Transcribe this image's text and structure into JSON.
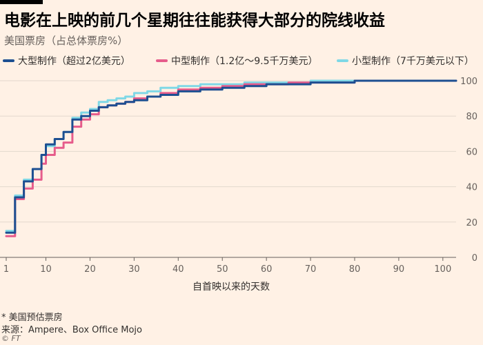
{
  "title": "电影在上映的前几个星期往往能获得大部分的院线收益",
  "subtitle": "美国票房（占总体票房%）",
  "footnote": "* 美国预估票房",
  "source": "来源：Ampere、Box Office Mojo",
  "credit": "© FT",
  "chart_data": {
    "type": "line",
    "xlabel": "自首映以来的天数",
    "ylabel": "",
    "xlim": [
      0,
      103
    ],
    "ylim": [
      0,
      100
    ],
    "xticks": [
      1,
      10,
      20,
      30,
      40,
      50,
      60,
      70,
      80,
      90,
      100
    ],
    "yticks": [
      0,
      20,
      40,
      60,
      80,
      100
    ],
    "grid": true,
    "y_axis_position": "right",
    "legend_position": "top",
    "series": [
      {
        "name": "小型制作（7千万美元以下）",
        "color": "#7fd8e6",
        "x": [
          1,
          3,
          5,
          7,
          9,
          10,
          12,
          14,
          16,
          18,
          20,
          22,
          24,
          26,
          28,
          30,
          33,
          36,
          40,
          45,
          50,
          55,
          60,
          65,
          70,
          75,
          80,
          85,
          90,
          95,
          100,
          103
        ],
        "y": [
          15,
          35,
          44,
          50,
          58,
          63,
          67,
          71,
          79,
          82,
          84,
          88,
          89,
          90,
          91,
          93,
          94,
          96,
          97,
          98,
          98,
          99,
          99,
          99,
          100,
          100,
          100,
          100,
          100,
          100,
          100,
          100
        ]
      },
      {
        "name": "中型制作（1.2亿～9.5千万美元）",
        "color": "#e65c8b",
        "x": [
          1,
          3,
          5,
          7,
          9,
          10,
          12,
          14,
          16,
          18,
          20,
          22,
          24,
          26,
          28,
          30,
          33,
          36,
          40,
          45,
          50,
          55,
          60,
          65,
          70,
          75,
          80,
          85,
          90,
          95,
          100,
          103
        ],
        "y": [
          12,
          33,
          39,
          44,
          53,
          58,
          62,
          65,
          74,
          78,
          81,
          85,
          86,
          87,
          88,
          90,
          91,
          93,
          95,
          96,
          97,
          98,
          98,
          99,
          99,
          99,
          100,
          100,
          100,
          100,
          100,
          100
        ]
      },
      {
        "name": "大型制作（超过2亿美元）",
        "color": "#1d4f91",
        "x": [
          1,
          3,
          5,
          7,
          9,
          10,
          12,
          14,
          16,
          18,
          20,
          22,
          24,
          26,
          28,
          30,
          33,
          36,
          40,
          45,
          50,
          55,
          60,
          65,
          70,
          75,
          80,
          85,
          90,
          95,
          100,
          103
        ],
        "y": [
          14,
          34,
          43,
          50,
          58,
          64,
          67,
          71,
          78,
          80,
          83,
          85,
          86,
          87,
          88,
          89,
          91,
          92,
          94,
          95,
          96,
          97,
          98,
          98,
          99,
          99,
          100,
          100,
          100,
          100,
          100,
          100
        ]
      }
    ],
    "legend": [
      {
        "name": "大型制作（超过2亿美元）",
        "color": "#1d4f91"
      },
      {
        "name": "中型制作（1.2亿～9.5千万美元）",
        "color": "#e65c8b"
      },
      {
        "name": "小型制作（7千万美元以下）",
        "color": "#7fd8e6"
      }
    ],
    "gridline_color": "#e3d8cd",
    "axis_color": "#66605c"
  }
}
